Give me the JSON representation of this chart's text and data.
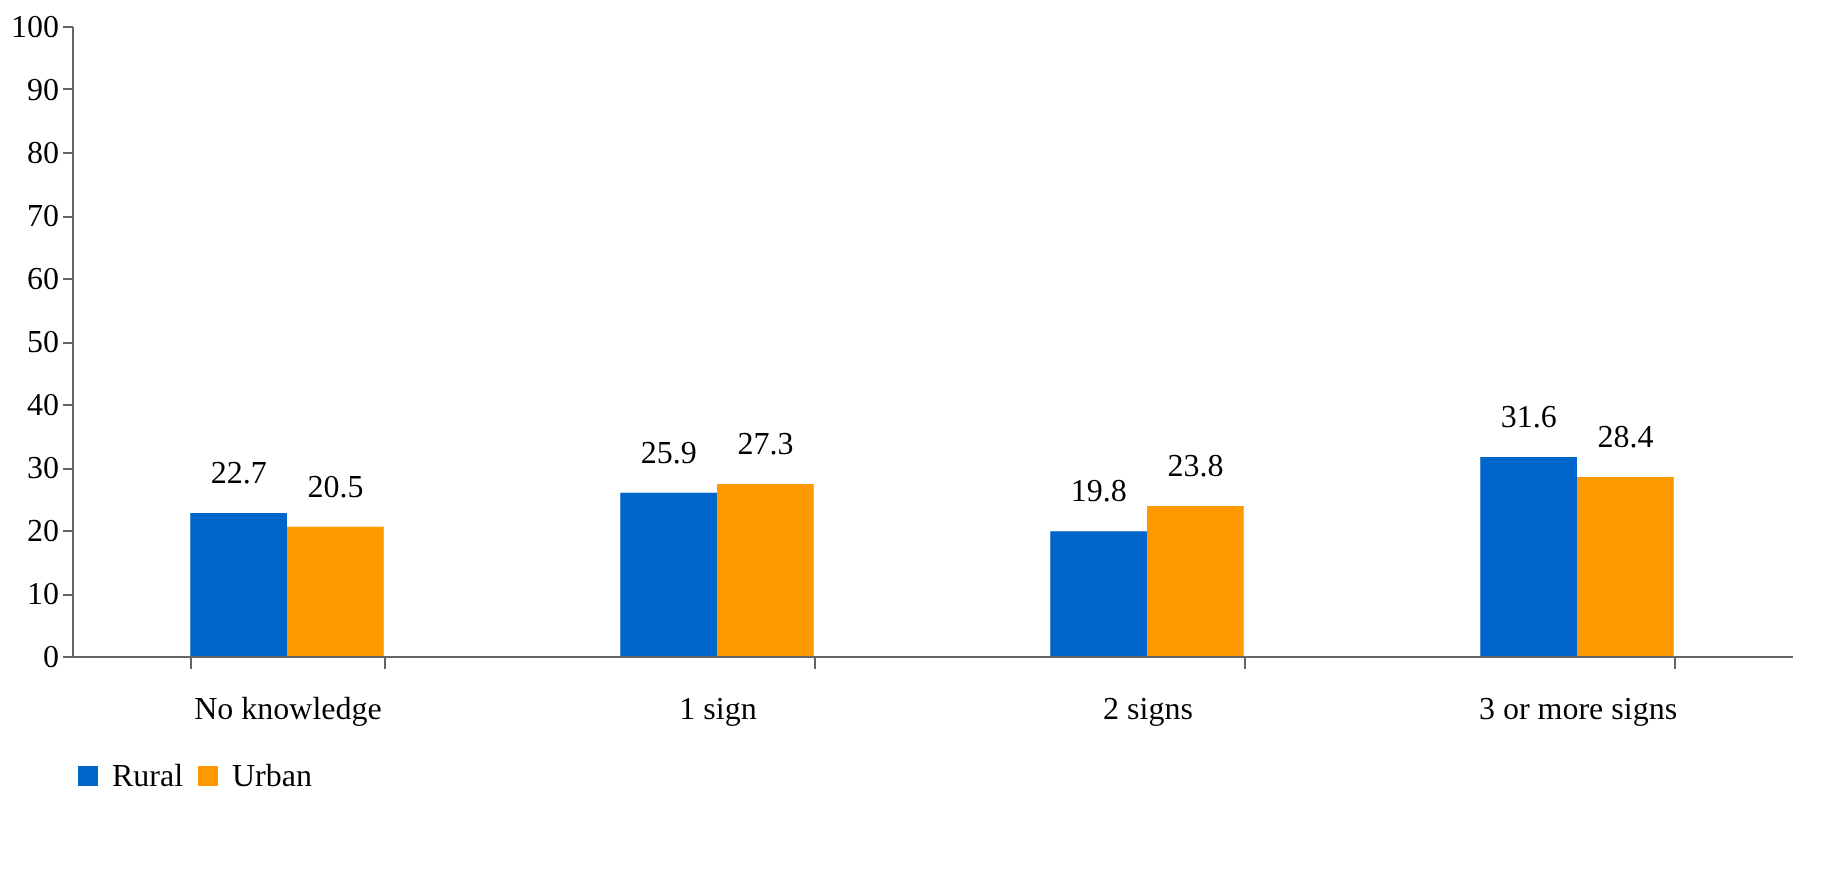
{
  "chart_data": {
    "type": "bar",
    "categories": [
      "No knowledge",
      "1 sign",
      "2 signs",
      "3 or more signs"
    ],
    "series": [
      {
        "name": "Rural",
        "color": "#0066cc",
        "values": [
          22.7,
          25.9,
          19.8,
          31.6
        ]
      },
      {
        "name": "Urban",
        "color": "#ff9900",
        "values": [
          20.5,
          27.3,
          23.8,
          28.4
        ]
      }
    ],
    "ylim": [
      0,
      100
    ],
    "yticks": [
      0,
      10,
      20,
      30,
      40,
      50,
      60,
      70,
      80,
      90,
      100
    ],
    "grid": false,
    "legend": "bottom",
    "data_labels": true
  }
}
